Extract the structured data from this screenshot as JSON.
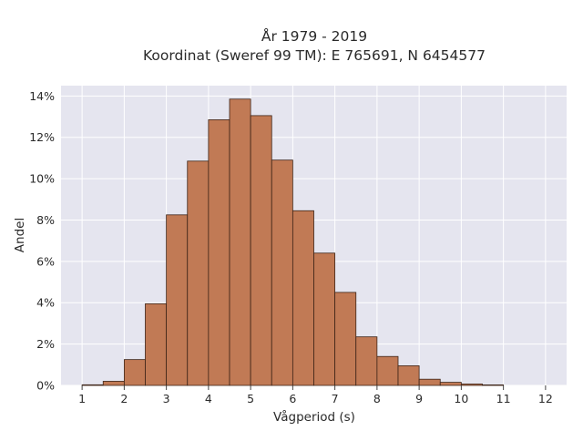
{
  "chart_data": {
    "type": "bar",
    "title_lines": [
      "År 1979 - 2019",
      "Koordinat (Sweref 99 TM): E 765691, N 6454577"
    ],
    "xlabel": "Vågperiod (s)",
    "ylabel": "Andel",
    "xlim": [
      0.5,
      12.5
    ],
    "ylim": [
      0,
      14.5
    ],
    "x_ticks": [
      1,
      2,
      3,
      4,
      5,
      6,
      7,
      8,
      9,
      10,
      11,
      12
    ],
    "x_tick_labels": [
      "1",
      "2",
      "3",
      "4",
      "5",
      "6",
      "7",
      "8",
      "9",
      "10",
      "11",
      "12"
    ],
    "y_ticks": [
      0,
      2,
      4,
      6,
      8,
      10,
      12,
      14
    ],
    "y_tick_labels": [
      "0%",
      "2%",
      "4%",
      "6%",
      "8%",
      "10%",
      "12%",
      "14%"
    ],
    "bin_width": 0.5,
    "bin_starts": [
      1.0,
      1.5,
      2.0,
      2.5,
      3.0,
      3.5,
      4.0,
      4.5,
      5.0,
      5.5,
      6.0,
      6.5,
      7.0,
      7.5,
      8.0,
      8.5,
      9.0,
      9.5,
      10.0,
      10.5
    ],
    "values": [
      0.03,
      0.2,
      1.25,
      3.95,
      8.25,
      10.85,
      12.85,
      13.85,
      13.05,
      10.9,
      8.45,
      6.4,
      4.5,
      2.35,
      1.4,
      0.95,
      0.3,
      0.15,
      0.07,
      0.02
    ],
    "bar_color": "#c17a55",
    "bar_edge_color": "#3d2417",
    "plot_background": "#e5e5ef",
    "grid": true,
    "grid_color": "#ffffff"
  }
}
